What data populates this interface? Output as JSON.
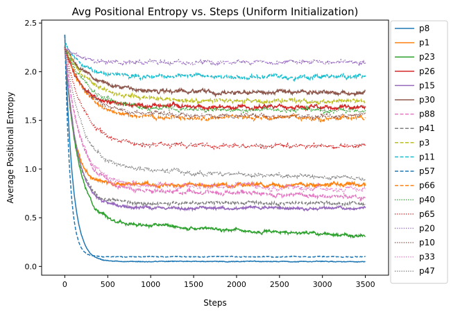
{
  "chart_data": {
    "type": "line",
    "title": "Avg Positional Entropy vs. Steps (Uniform Initialization)",
    "xlabel": "Steps",
    "ylabel": "Average Positional Entropy",
    "xlim": [
      -270,
      3770
    ],
    "ylim": [
      -0.09,
      2.53
    ],
    "xticks": [
      0,
      500,
      1000,
      1500,
      2000,
      2500,
      3000,
      3500
    ],
    "xtick_labels": [
      "0",
      "500",
      "1000",
      "1500",
      "2000",
      "2500",
      "3000",
      "3500"
    ],
    "yticks": [
      0.0,
      0.5,
      1.0,
      1.5,
      2.0,
      2.5
    ],
    "ytick_labels": [
      "0.0",
      "0.5",
      "1.0",
      "1.5",
      "2.0",
      "2.5"
    ],
    "legend_position": "outside-right",
    "grid": false,
    "x_max": 3500,
    "series": [
      {
        "name": "p8",
        "color": "#1f77b4",
        "style": "solid",
        "start": 2.38,
        "plateau": 0.05,
        "decay": 90,
        "drift": 0.0,
        "noise": 0.004
      },
      {
        "name": "p1",
        "color": "#ff7f0e",
        "style": "solid",
        "start": 2.25,
        "plateau": 0.84,
        "decay": 110,
        "drift": 0.0,
        "noise": 0.02
      },
      {
        "name": "p23",
        "color": "#2ca02c",
        "style": "solid",
        "start": 2.25,
        "plateau": 0.46,
        "decay": 150,
        "drift": 0.15,
        "noise": 0.015
      },
      {
        "name": "p26",
        "color": "#d62728",
        "style": "solid",
        "start": 2.25,
        "plateau": 1.64,
        "decay": 200,
        "drift": 0.0,
        "noise": 0.02
      },
      {
        "name": "p15",
        "color": "#9467bd",
        "style": "solid",
        "start": 2.25,
        "plateau": 0.6,
        "decay": 140,
        "drift": 0.0,
        "noise": 0.015
      },
      {
        "name": "p30",
        "color": "#8c564b",
        "style": "solid",
        "start": 2.25,
        "plateau": 1.79,
        "decay": 300,
        "drift": 0.0,
        "noise": 0.02
      },
      {
        "name": "p88",
        "color": "#e377c2",
        "style": "dashed",
        "start": 2.25,
        "plateau": 0.8,
        "decay": 180,
        "drift": 0.08,
        "noise": 0.02
      },
      {
        "name": "p41",
        "color": "#7f7f7f",
        "style": "dashed",
        "start": 2.25,
        "plateau": 0.65,
        "decay": 130,
        "drift": 0.0,
        "noise": 0.015
      },
      {
        "name": "p3",
        "color": "#bcbd22",
        "style": "dashed",
        "start": 2.25,
        "plateau": 1.7,
        "decay": 300,
        "drift": 0.0,
        "noise": 0.02
      },
      {
        "name": "p11",
        "color": "#17becf",
        "style": "dashed",
        "start": 2.3,
        "plateau": 1.95,
        "decay": 200,
        "drift": 0.0,
        "noise": 0.02
      },
      {
        "name": "p57",
        "color": "#1f77b4",
        "style": "dashed",
        "start": 2.38,
        "plateau": 0.1,
        "decay": 60,
        "drift": 0.0,
        "noise": 0.004
      },
      {
        "name": "p66",
        "color": "#ff7f0e",
        "style": "dashed",
        "start": 2.25,
        "plateau": 1.52,
        "decay": 250,
        "drift": 0.0,
        "noise": 0.02
      },
      {
        "name": "p40",
        "color": "#2ca02c",
        "style": "dotted",
        "start": 2.25,
        "plateau": 1.6,
        "decay": 300,
        "drift": 0.0,
        "noise": 0.02
      },
      {
        "name": "p65",
        "color": "#d62728",
        "style": "dotted",
        "start": 2.25,
        "plateau": 1.24,
        "decay": 220,
        "drift": 0.0,
        "noise": 0.02
      },
      {
        "name": "p20",
        "color": "#9467bd",
        "style": "dotted",
        "start": 2.25,
        "plateau": 2.1,
        "decay": 150,
        "drift": 0.0,
        "noise": 0.02
      },
      {
        "name": "p10",
        "color": "#8c564b",
        "style": "dotted",
        "start": 2.25,
        "plateau": 1.55,
        "decay": 250,
        "drift": 0.0,
        "noise": 0.02
      },
      {
        "name": "p33",
        "color": "#e377c2",
        "style": "dotted",
        "start": 2.25,
        "plateau": 0.85,
        "decay": 170,
        "drift": 0.05,
        "noise": 0.025
      },
      {
        "name": "p47",
        "color": "#7f7f7f",
        "style": "dotted",
        "start": 2.25,
        "plateau": 1.0,
        "decay": 200,
        "drift": 0.1,
        "noise": 0.02
      }
    ]
  }
}
